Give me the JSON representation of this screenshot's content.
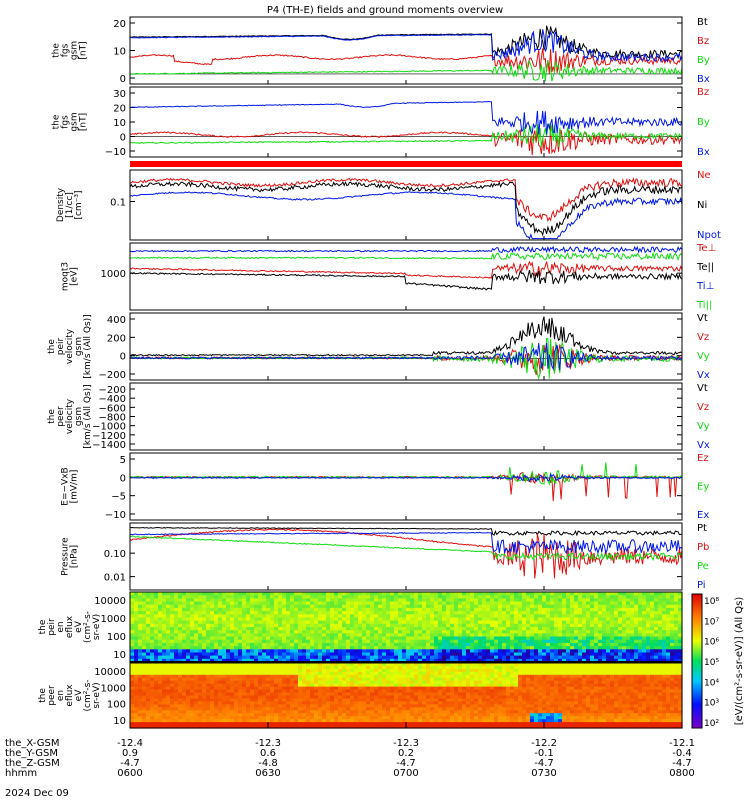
{
  "title": "P4 (TH-E) fields and ground moments overview",
  "colors": {
    "black": "#000000",
    "red": "#e01010",
    "green": "#10dd10",
    "blue": "#0018e8"
  },
  "chart_data": [
    {
      "type": "line",
      "id": "fgs",
      "ylabel": [
        "the",
        "fgs",
        "gsm",
        "[nT]"
      ],
      "yticks": [
        "20",
        "10",
        "0"
      ],
      "ylim": [
        -5,
        28
      ],
      "series": [
        {
          "name": "Bt",
          "color": "black"
        },
        {
          "name": "Bz",
          "color": "red"
        },
        {
          "name": "By",
          "color": "green"
        },
        {
          "name": "Bx",
          "color": "blue"
        }
      ]
    },
    {
      "type": "line",
      "id": "fgs2",
      "ylabel": [
        "the",
        "fgs",
        "gsm",
        "[nT]"
      ],
      "yticks": [
        "30",
        "20",
        "10",
        "0",
        "−10"
      ],
      "ylim": [
        -14,
        34
      ],
      "series": [
        {
          "name": "Bz",
          "color": "red"
        },
        {
          "name": "By",
          "color": "green"
        },
        {
          "name": "Bx",
          "color": "blue"
        }
      ]
    },
    {
      "type": "line",
      "id": "density",
      "ylabel": [
        "Density",
        "[1/cc]",
        "[cm⁻³]"
      ],
      "yticks": [
        "0.1"
      ],
      "log": true,
      "series": [
        {
          "name": "Ne",
          "color": "red"
        },
        {
          "name": "Ni",
          "color": "black"
        },
        {
          "name": "Npot",
          "color": "blue"
        }
      ]
    },
    {
      "type": "line",
      "id": "temp",
      "ylabel": [
        "moqt3",
        "[eV]"
      ],
      "yticks": [
        "1000"
      ],
      "log": true,
      "series": [
        {
          "name": "Te⊥",
          "color": "red"
        },
        {
          "name": "Te||",
          "color": "black"
        },
        {
          "name": "Ti⊥",
          "color": "blue"
        },
        {
          "name": "Ti||",
          "color": "green"
        }
      ]
    },
    {
      "type": "line",
      "id": "peir_vel",
      "ylabel": [
        "the",
        "peir",
        "velocity",
        "gsm",
        "[km/s (All Qs)]"
      ],
      "yticks": [
        "400",
        "200",
        "0",
        "−200"
      ],
      "ylim": [
        -260,
        560
      ],
      "series": [
        {
          "name": "Vt",
          "color": "black"
        },
        {
          "name": "Vz",
          "color": "red"
        },
        {
          "name": "Vy",
          "color": "green"
        },
        {
          "name": "Vx",
          "color": "blue"
        }
      ]
    },
    {
      "type": "line",
      "id": "peer_vel",
      "ylabel": [
        "the",
        "peer",
        "velocity",
        "gsm",
        "[km/s (All Qs)]"
      ],
      "yticks": [
        "−200",
        "−400",
        "−600",
        "−800",
        "−1000",
        "−1200",
        "−1400"
      ],
      "ylim": [
        -1500,
        -100
      ],
      "series": [
        {
          "name": "Vt",
          "color": "black"
        },
        {
          "name": "Vz",
          "color": "red"
        },
        {
          "name": "Vy",
          "color": "green"
        },
        {
          "name": "Vx",
          "color": "blue"
        }
      ]
    },
    {
      "type": "line",
      "id": "efield",
      "ylabel": [
        "E=−VxB",
        "[mV/m]"
      ],
      "yticks": [
        "5",
        "0",
        "−5",
        "−10"
      ],
      "ylim": [
        -12,
        7
      ],
      "series": [
        {
          "name": "Ez",
          "color": "red"
        },
        {
          "name": "Ey",
          "color": "green"
        },
        {
          "name": "Ex",
          "color": "blue"
        }
      ]
    },
    {
      "type": "line",
      "id": "pressure",
      "ylabel": [
        "Pressure",
        "[nPa]"
      ],
      "yticks": [
        "0.10",
        "0.01"
      ],
      "log": true,
      "series": [
        {
          "name": "Pt",
          "color": "black"
        },
        {
          "name": "Pb",
          "color": "red"
        },
        {
          "name": "Pe",
          "color": "green"
        },
        {
          "name": "Pi",
          "color": "blue"
        }
      ]
    },
    {
      "type": "heatmap",
      "id": "peir_en",
      "ylabel": [
        "the",
        "peir",
        "en",
        "eflux",
        "eV",
        "(cm²-s-",
        "sr-eV)"
      ],
      "yticks": [
        "10000",
        "1000",
        "100",
        "10"
      ]
    },
    {
      "type": "heatmap",
      "id": "peer_en",
      "ylabel": [
        "the",
        "peer",
        "en",
        "eflux",
        "eV",
        "(cm²-s-",
        "sr-eV)"
      ],
      "yticks": [
        "10000",
        "1000",
        "100",
        "10"
      ]
    }
  ],
  "colorbar": {
    "ticks": [
      "10⁸",
      "10⁷",
      "10⁶",
      "10⁵",
      "10⁴",
      "10³",
      "10²"
    ],
    "label": "[eV/(cm²-s-sr-eV)] (All Qs)"
  },
  "xaxis": {
    "rows": [
      {
        "label": "the_X-GSM",
        "values": [
          "-12.4",
          "-12.3",
          "-12.3",
          "-12.2",
          "-12.1"
        ]
      },
      {
        "label": "the_Y-GSM",
        "values": [
          "0.9",
          "0.6",
          "0.2",
          "-0.1",
          "-0.4"
        ]
      },
      {
        "label": "the_Z-GSM",
        "values": [
          "-4.7",
          "-4.8",
          "-4.7",
          "-4.7",
          "-4.7"
        ]
      },
      {
        "label": "hhmm",
        "values": [
          "0600",
          "0630",
          "0700",
          "0730",
          "0800"
        ]
      }
    ],
    "date": "2024 Dec 09"
  }
}
